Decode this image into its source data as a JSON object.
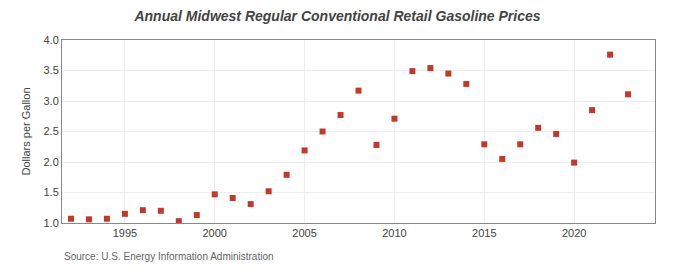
{
  "chart_data": {
    "type": "scatter",
    "title": "Annual Midwest Regular Conventional Retail Gasoline Prices",
    "ylabel": "Dollars per Gallon",
    "annotations": [
      "Source: U.S. Energy Information Administration"
    ],
    "x": [
      1992,
      1993,
      1994,
      1995,
      1996,
      1997,
      1998,
      1999,
      2000,
      2001,
      2002,
      2003,
      2004,
      2005,
      2006,
      2007,
      2008,
      2009,
      2010,
      2011,
      2012,
      2013,
      2014,
      2015,
      2016,
      2017,
      2018,
      2019,
      2020,
      2021,
      2022,
      2023
    ],
    "values": [
      1.07,
      1.06,
      1.07,
      1.15,
      1.21,
      1.2,
      1.03,
      1.13,
      1.47,
      1.41,
      1.31,
      1.52,
      1.79,
      2.19,
      2.5,
      2.77,
      3.17,
      2.28,
      2.71,
      3.49,
      3.54,
      3.45,
      3.28,
      2.29,
      2.05,
      2.29,
      2.56,
      2.46,
      1.99,
      2.85,
      3.76,
      3.11
    ],
    "color": "#c0392b",
    "marker": "square",
    "xlim": [
      1991.5,
      2024.5
    ],
    "xticks": [
      1995,
      2000,
      2005,
      2010,
      2015,
      2020
    ],
    "ylim": [
      1.0,
      4.0
    ],
    "yticks": [
      {
        "value": 1.0,
        "label": "1.0"
      },
      1.5,
      {
        "value": 2.0,
        "label": "2.0"
      },
      2.5,
      {
        "value": 3.0,
        "label": "3.0"
      },
      3.5,
      {
        "value": 4.0,
        "label": "4.0"
      }
    ],
    "grid": true
  }
}
